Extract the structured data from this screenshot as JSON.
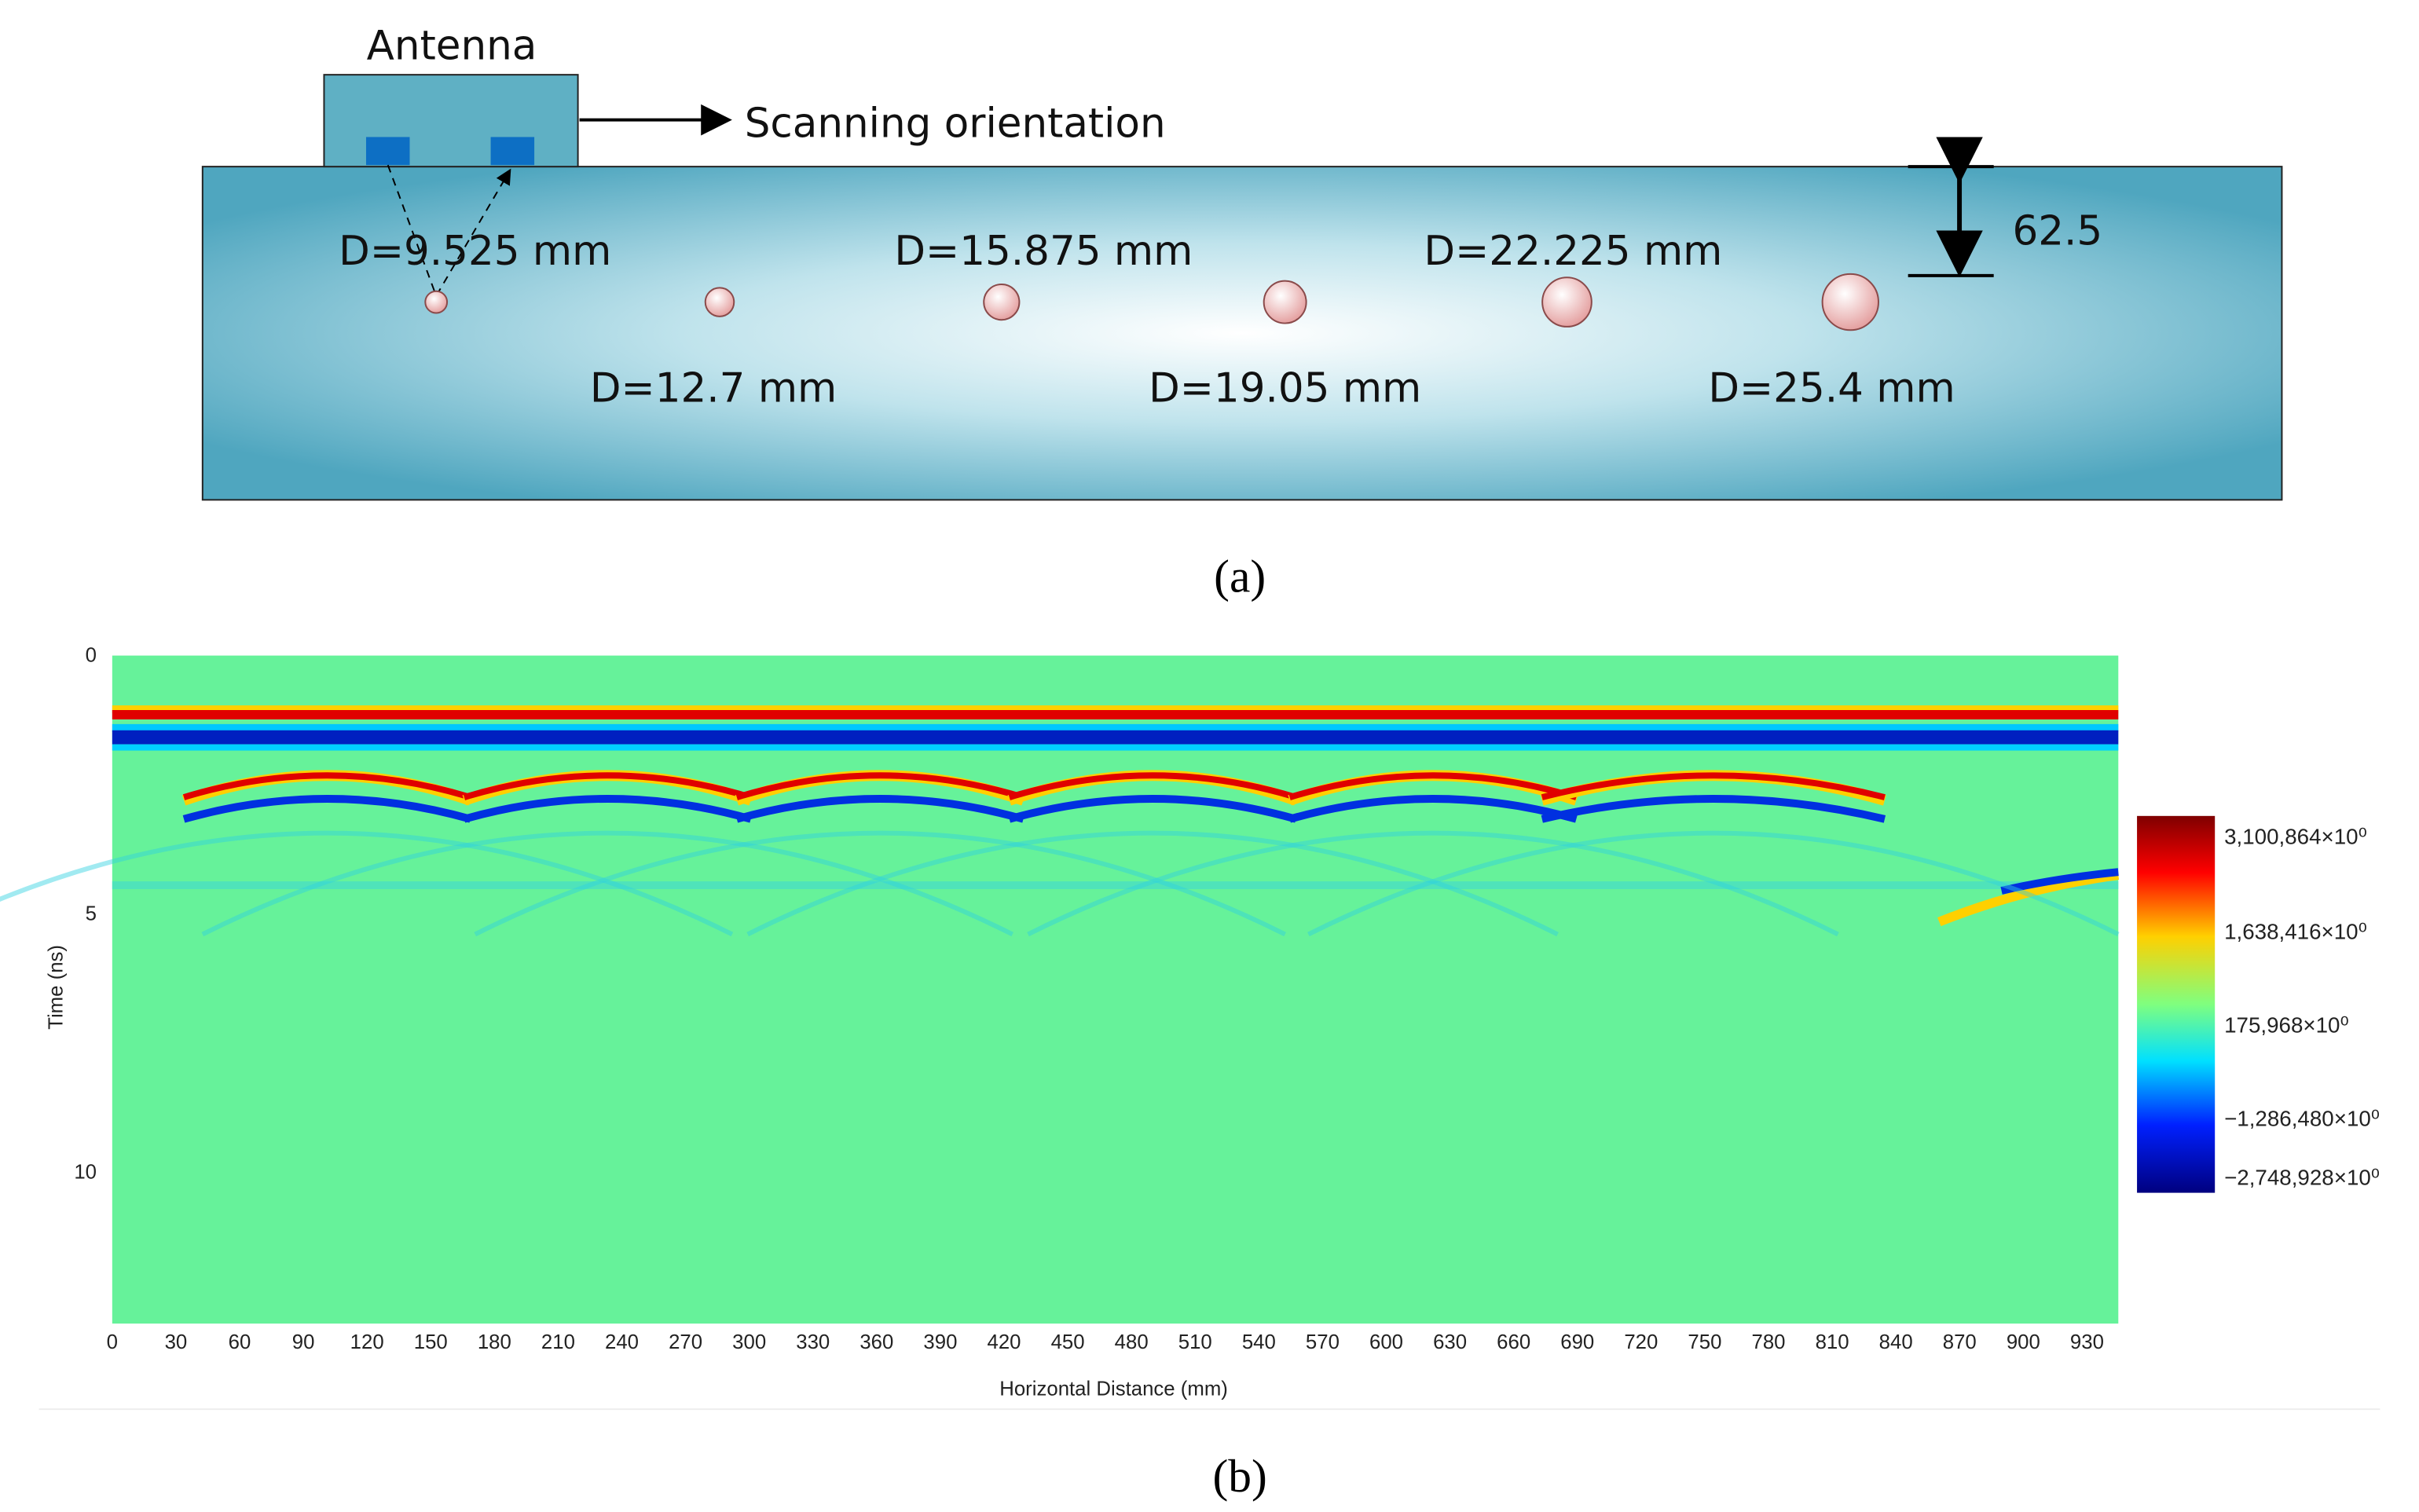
{
  "panel_a": {
    "antenna": "Antenna",
    "scan": "Scanning orientation",
    "depth": "62.5",
    "holes": [
      "D=9.525 mm",
      "D=12.7 mm",
      "D=15.875 mm",
      "D=19.05 mm",
      "D=22.225 mm",
      "D=25.4 mm"
    ],
    "caption": "(a)"
  },
  "panel_b": {
    "y_label": "Time (ns)",
    "x_label": "Horizontal Distance (mm)",
    "y_ticks": [
      "0",
      "5",
      "10"
    ],
    "x_ticks": [
      "0",
      "30",
      "60",
      "90",
      "120",
      "150",
      "180",
      "210",
      "240",
      "270",
      "300",
      "330",
      "360",
      "390",
      "420",
      "450",
      "480",
      "510",
      "540",
      "570",
      "600",
      "630",
      "660",
      "690",
      "720",
      "750",
      "780",
      "810",
      "840",
      "870",
      "900",
      "930"
    ],
    "colorbar": [
      "3,100,864×10⁰",
      "1,638,416×10⁰",
      "175,968×10⁰",
      "−1,286,480×10⁰",
      "−2,748,928×10⁰"
    ],
    "caption": "(b)"
  }
}
